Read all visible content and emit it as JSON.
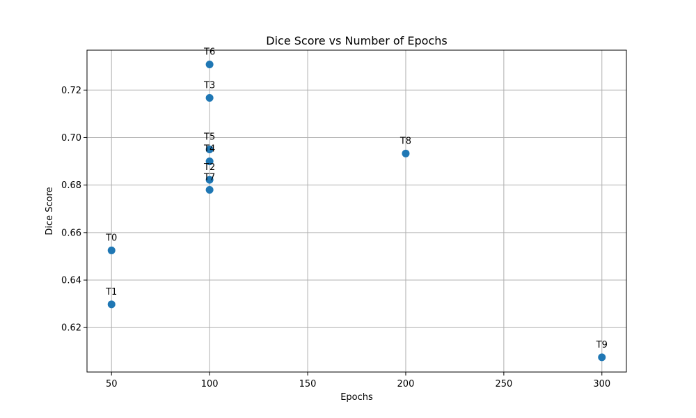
{
  "chart_data": {
    "type": "scatter",
    "title": "Dice Score vs Number of Epochs",
    "xlabel": "Epochs",
    "ylabel": "Dice Score",
    "xlim": [
      37.5,
      312.5
    ],
    "ylim": [
      0.6013,
      0.7368
    ],
    "xticks": [
      50,
      100,
      150,
      200,
      250,
      300
    ],
    "yticks": [
      0.62,
      0.64,
      0.66,
      0.68,
      0.7,
      0.72
    ],
    "ytick_labels": [
      "0.62",
      "0.64",
      "0.66",
      "0.68",
      "0.70",
      "0.72"
    ],
    "grid": true,
    "color": "#1f77b4",
    "points": [
      {
        "label": "T0",
        "x": 50,
        "y": 0.6525
      },
      {
        "label": "T1",
        "x": 50,
        "y": 0.6298
      },
      {
        "label": "T2",
        "x": 100,
        "y": 0.6822
      },
      {
        "label": "T3",
        "x": 100,
        "y": 0.7167
      },
      {
        "label": "T4",
        "x": 100,
        "y": 0.69
      },
      {
        "label": "T5",
        "x": 100,
        "y": 0.695
      },
      {
        "label": "T6",
        "x": 100,
        "y": 0.7308
      },
      {
        "label": "T7",
        "x": 100,
        "y": 0.678
      },
      {
        "label": "T8",
        "x": 200,
        "y": 0.6933
      },
      {
        "label": "T9",
        "x": 300,
        "y": 0.6075
      }
    ]
  }
}
